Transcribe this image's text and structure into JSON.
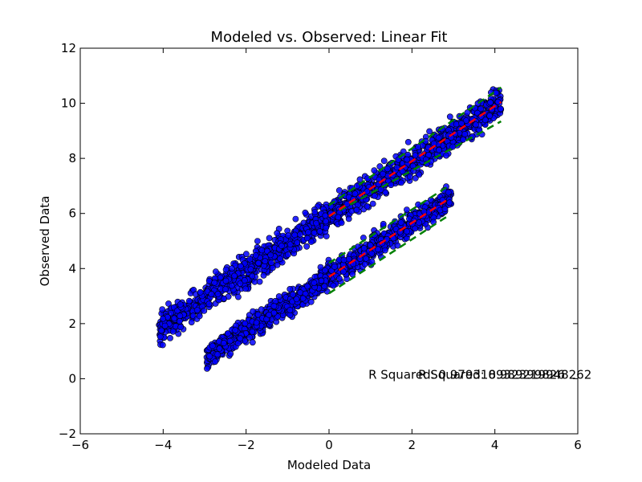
{
  "chart_data": {
    "type": "scatter",
    "title": "Modeled vs. Observed: Linear Fit",
    "xlabel": "Modeled Data",
    "ylabel": "Observed Data",
    "xlim": [
      -6,
      6
    ],
    "ylim": [
      -2,
      12
    ],
    "xticks": [
      -6,
      -4,
      -2,
      0,
      2,
      4,
      6
    ],
    "yticks": [
      -2,
      0,
      2,
      4,
      6,
      8,
      10,
      12
    ],
    "xtick_labels": [
      "−6",
      "−4",
      "−2",
      "0",
      "2",
      "4",
      "6"
    ],
    "ytick_labels": [
      "−2",
      "0",
      "2",
      "4",
      "6",
      "8",
      "10",
      "12"
    ],
    "grid": false,
    "colors": {
      "points_fill": "#0000ff",
      "points_edge": "#000000",
      "fit_line": "#ff0000",
      "band_line": "#008000"
    },
    "series": [
      {
        "x_range": [
          -4.1,
          4.15
        ],
        "fit": {
          "slope": 1.0,
          "intercept": 5.9
        },
        "band_upper": {
          "slope": 1.03,
          "intercept": 6.3
        },
        "band_lower": {
          "slope": 0.83,
          "intercept": 5.9
        },
        "fit_x_range": [
          0,
          4.15
        ],
        "spread": 0.28
      },
      {
        "x_range": [
          -2.95,
          2.95
        ],
        "fit": {
          "slope": 0.98,
          "intercept": 3.7
        },
        "band_upper": {
          "slope": 0.97,
          "intercept": 4.2
        },
        "band_lower": {
          "slope": 0.98,
          "intercept": 3.1
        },
        "fit_x_range": [
          0,
          2.9
        ],
        "spread": 0.22
      }
    ],
    "annotations": [
      {
        "text": "R Squared: 0.979318932399826",
        "x": 0.95,
        "y": 0.0
      },
      {
        "text": "R Squared: 0.989219948262",
        "x": 2.15,
        "y": 0.0
      }
    ]
  }
}
